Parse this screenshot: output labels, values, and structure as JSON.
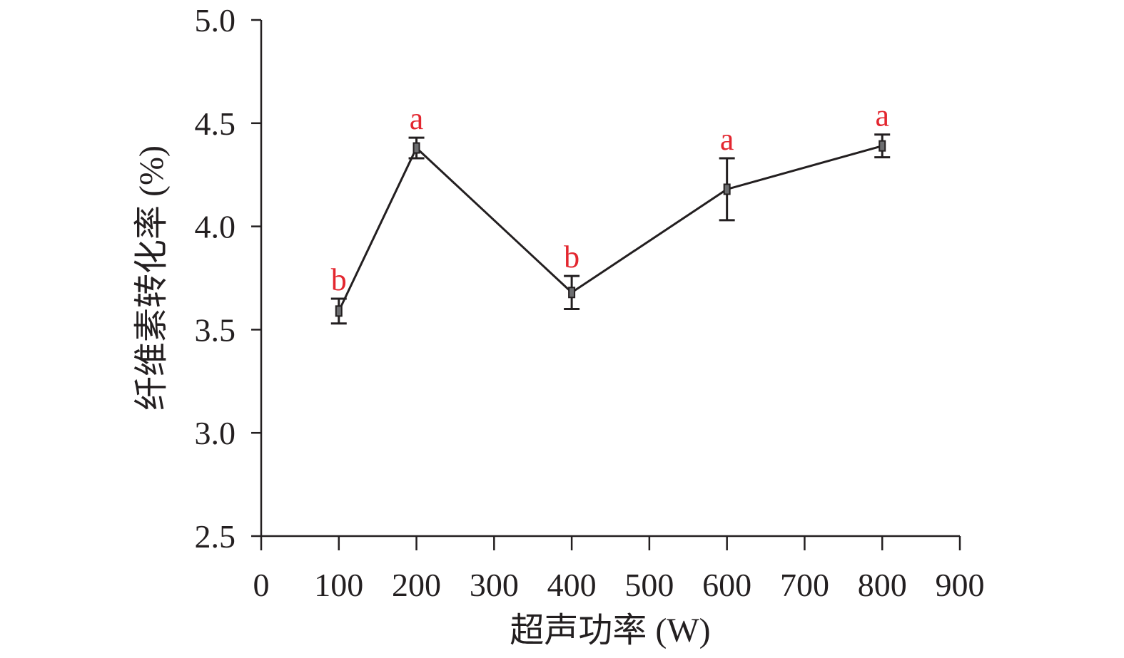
{
  "chart_data": {
    "type": "line",
    "title": "",
    "xlabel": "超声功率 (W)",
    "ylabel": "纤维素转化率 (%)",
    "xlim": [
      0,
      900
    ],
    "ylim": [
      2.5,
      5.0
    ],
    "xticks": [
      "0",
      "100",
      "200",
      "300",
      "400",
      "500",
      "600",
      "700",
      "800",
      "900"
    ],
    "yticks": [
      "2.5",
      "3.0",
      "3.5",
      "4.0",
      "4.5",
      "5.0"
    ],
    "grid": false,
    "series": [
      {
        "name": "纤维素转化率",
        "x": [
          100,
          200,
          400,
          600,
          800
        ],
        "y": [
          3.59,
          4.38,
          3.68,
          4.18,
          4.39
        ],
        "error": [
          0.06,
          0.05,
          0.08,
          0.15,
          0.055
        ],
        "significance": [
          "b",
          "a",
          "b",
          "a",
          "a"
        ]
      }
    ],
    "colors": {
      "line": "#231f20",
      "marker": "#6d6e70",
      "significance": "#e3262f"
    }
  }
}
